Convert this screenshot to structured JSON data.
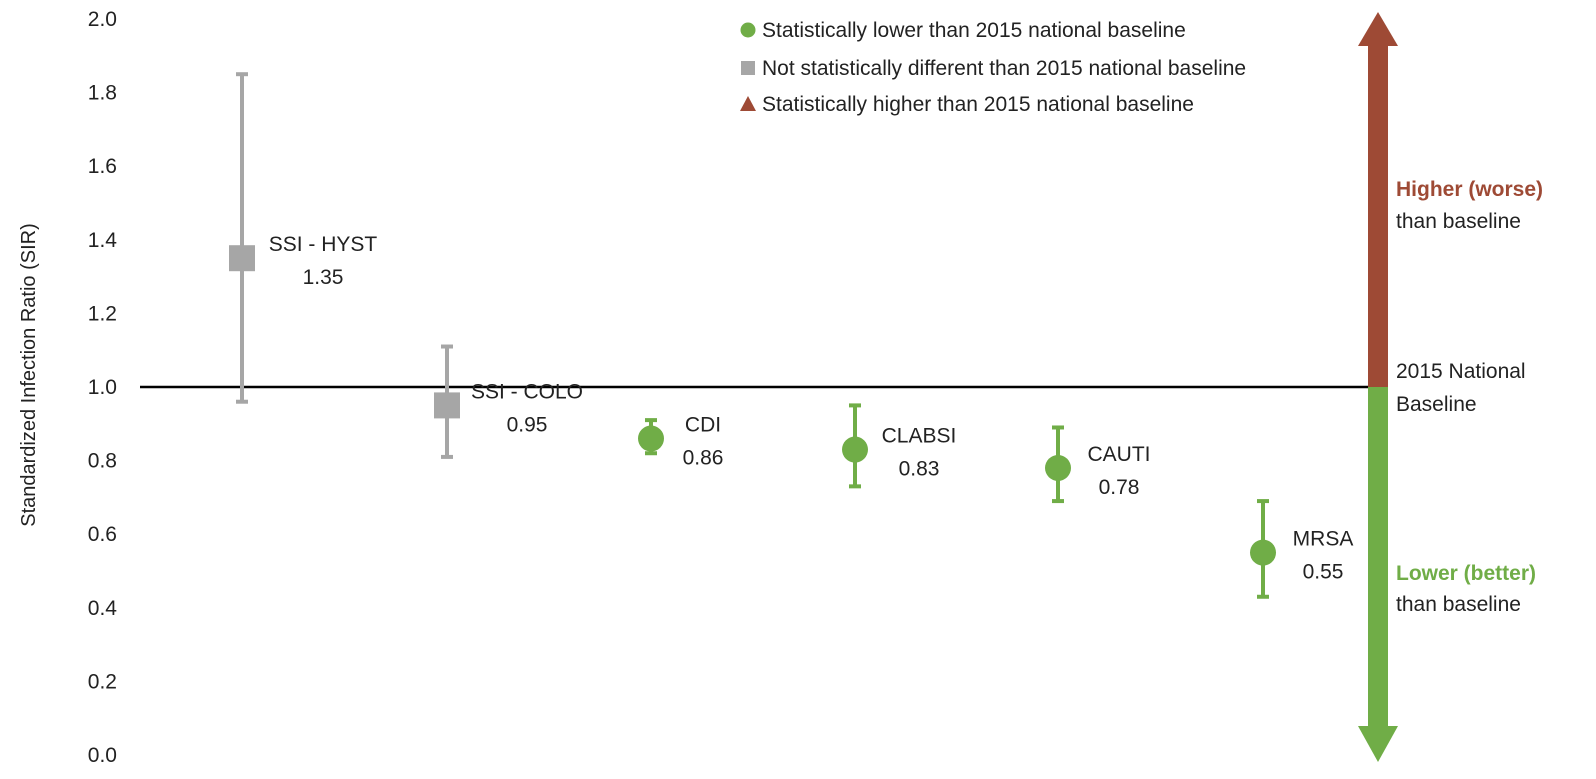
{
  "colors": {
    "lower": "#70ad47",
    "not_different": "#a6a6a6",
    "higher": "#9e4a35",
    "baseline_line": "#000000"
  },
  "chart_data": {
    "type": "scatter",
    "ylabel": "Standardized Infection Ratio (SIR)",
    "ylim": [
      0,
      2
    ],
    "yticks": [
      "0.0",
      "0.2",
      "0.4",
      "0.6",
      "0.8",
      "1.0",
      "1.2",
      "1.4",
      "1.6",
      "1.8",
      "2.0"
    ],
    "baseline": 1.0,
    "grid": false,
    "legend_position": "top-center",
    "legend": [
      {
        "marker": "circle",
        "status": "lower",
        "label": "Statistically lower than 2015 national baseline"
      },
      {
        "marker": "square",
        "status": "not_different",
        "label": "Not statistically different than 2015 national baseline"
      },
      {
        "marker": "triangle",
        "status": "higher",
        "label": "Statistically higher than 2015 national baseline"
      }
    ],
    "points": [
      {
        "name": "SSI - HYST",
        "value": 1.35,
        "value_label": "1.35",
        "ci_low": 0.96,
        "ci_high": 1.85,
        "status": "not_different",
        "marker": "square"
      },
      {
        "name": "SSI - COLO",
        "value": 0.95,
        "value_label": "0.95",
        "ci_low": 0.81,
        "ci_high": 1.11,
        "status": "not_different",
        "marker": "square"
      },
      {
        "name": "CDI",
        "value": 0.86,
        "value_label": "0.86",
        "ci_low": 0.82,
        "ci_high": 0.91,
        "status": "lower",
        "marker": "circle"
      },
      {
        "name": "CLABSI",
        "value": 0.83,
        "value_label": "0.83",
        "ci_low": 0.73,
        "ci_high": 0.95,
        "status": "lower",
        "marker": "circle"
      },
      {
        "name": "CAUTI",
        "value": 0.78,
        "value_label": "0.78",
        "ci_low": 0.69,
        "ci_high": 0.89,
        "status": "lower",
        "marker": "circle"
      },
      {
        "name": "MRSA",
        "value": 0.55,
        "value_label": "0.55",
        "ci_low": 0.43,
        "ci_high": 0.69,
        "status": "lower",
        "marker": "circle"
      }
    ],
    "side_annotation": {
      "higher_bold": "Higher (worse)",
      "higher_rest": "than baseline",
      "baseline_line1": "2015 National",
      "baseline_line2": "Baseline",
      "lower_bold": "Lower (better)",
      "lower_rest": "than baseline"
    }
  }
}
